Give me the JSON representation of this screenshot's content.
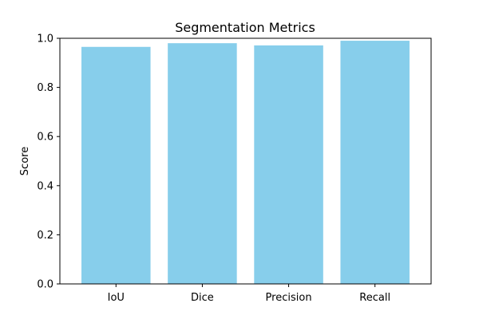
{
  "chart_data": {
    "type": "bar",
    "title": "Segmentation Metrics",
    "xlabel": "",
    "ylabel": "Score",
    "categories": [
      "IoU",
      "Dice",
      "Precision",
      "Recall"
    ],
    "values": [
      0.965,
      0.98,
      0.971,
      0.99
    ],
    "ylim": [
      0,
      1.0
    ],
    "yticks": [
      "0.0",
      "0.2",
      "0.4",
      "0.6",
      "0.8",
      "1.0"
    ],
    "bar_color": "#87CEEB",
    "grid": false,
    "legend": "none"
  }
}
